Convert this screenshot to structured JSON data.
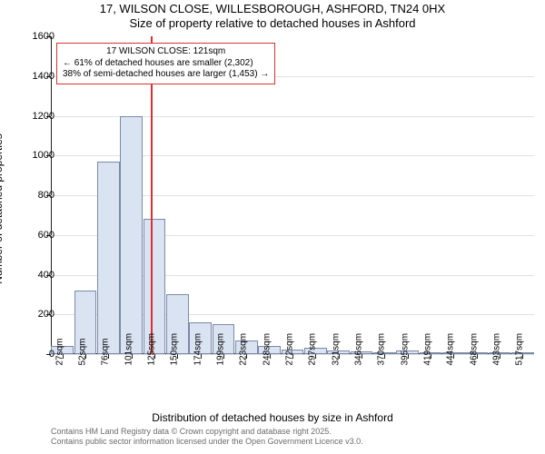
{
  "chart": {
    "type": "histogram",
    "title_line1": "17, WILSON CLOSE, WILLESBOROUGH, ASHFORD, TN24 0HX",
    "title_line2": "Size of property relative to detached houses in Ashford",
    "xlabel": "Distribution of detached houses by size in Ashford",
    "ylabel": "Number of detached properties",
    "background_color": "#ffffff",
    "grid_color": "#e0e0e0",
    "bar_fill": "#d9e3f2",
    "bar_border": "#7a8aa6",
    "refline_color": "#d93030",
    "ylim": [
      0,
      1600
    ],
    "ytick_step": 200,
    "yticks": [
      0,
      200,
      400,
      600,
      800,
      1000,
      1200,
      1400,
      1600
    ],
    "xlim_labels": [
      "27sqm",
      "52sqm",
      "76sqm",
      "101sqm",
      "125sqm",
      "150sqm",
      "174sqm",
      "199sqm",
      "223sqm",
      "248sqm",
      "272sqm",
      "297sqm",
      "321sqm",
      "346sqm",
      "370sqm",
      "395sqm",
      "419sqm",
      "444sqm",
      "468sqm",
      "493sqm",
      "517sqm"
    ],
    "values": [
      40,
      320,
      970,
      1200,
      680,
      300,
      160,
      150,
      70,
      40,
      25,
      30,
      20,
      15,
      10,
      20,
      8,
      8,
      6,
      5,
      6
    ],
    "reference": {
      "value_sqm": 121,
      "box_lines": [
        "17 WILSON CLOSE: 121sqm",
        "← 61% of detached houses are smaller (2,302)",
        "38% of semi-detached houses are larger (1,453) →"
      ]
    },
    "title_fontsize": 13,
    "label_fontsize": 12,
    "tick_fontsize": 11,
    "xtick_fontsize": 10,
    "annotation_fontsize": 10
  },
  "footer": {
    "line1": "Contains HM Land Registry data © Crown copyright and database right 2025.",
    "line2": "Contains public sector information licensed under the Open Government Licence v3.0."
  }
}
